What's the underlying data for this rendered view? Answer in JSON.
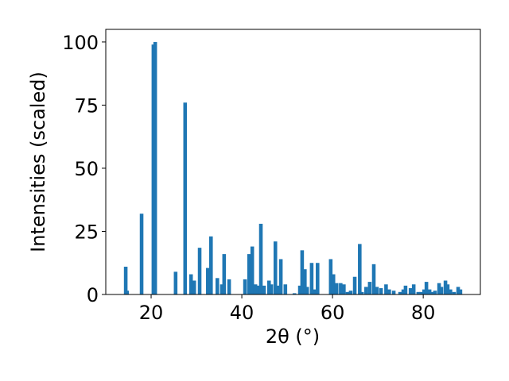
{
  "chart_data": {
    "type": "bar",
    "xlabel": "2θ (°)",
    "ylabel": "Intensities (scaled)",
    "color": "#1f77b4",
    "bar_width": 0.8,
    "x": [
      14.4,
      14.7,
      17.9,
      20.5,
      20.9,
      25.4,
      27.5,
      28.8,
      29.5,
      30.7,
      32.5,
      33.2,
      34.6,
      35.6,
      36.1,
      37.2,
      40.7,
      41.6,
      42.3,
      43,
      43.7,
      44.2,
      44.9,
      46,
      46.5,
      47.4,
      47.9,
      48.6,
      49.6,
      51.6,
      52.8,
      53.3,
      53.9,
      54.4,
      55.4,
      56,
      56.7,
      59.6,
      60.2,
      60.9,
      61.8,
      62.5,
      63.3,
      64,
      64.9,
      66,
      66.5,
      67.4,
      68.2,
      69.1,
      69.8,
      70.7,
      71.8,
      72.5,
      73.5,
      74.9,
      75.6,
      76.1,
      77.2,
      77.9,
      78.9,
      79.6,
      80.2,
      80.7,
      81.4,
      81.9,
      82.6,
      83.5,
      84,
      84.9,
      85.4,
      86,
      86.8,
      87.7,
      88.2
    ],
    "values": [
      11,
      1.5,
      32,
      99,
      100,
      9,
      76,
      8,
      5.5,
      18.5,
      10.5,
      23,
      6.5,
      4,
      16,
      6,
      6,
      16,
      19,
      4,
      3.5,
      28,
      3.5,
      5.5,
      4,
      21,
      3.5,
      14,
      4,
      0.5,
      3.5,
      17.5,
      10,
      3,
      12.5,
      2,
      12.5,
      14,
      8,
      4.5,
      4.5,
      4,
      1,
      1.5,
      7,
      20,
      1,
      3,
      5,
      12,
      3,
      2.5,
      4,
      2,
      1.5,
      1,
      2,
      3.5,
      2.5,
      4,
      1,
      1,
      2,
      5,
      2,
      1,
      1.5,
      4.5,
      3,
      5.5,
      4,
      2,
      1,
      3,
      2
    ],
    "xlim": [
      10,
      92.6
    ],
    "ylim": [
      0,
      105
    ],
    "xticks": [
      20,
      40,
      60,
      80
    ],
    "yticks": [
      0,
      25,
      50,
      75,
      100
    ]
  }
}
